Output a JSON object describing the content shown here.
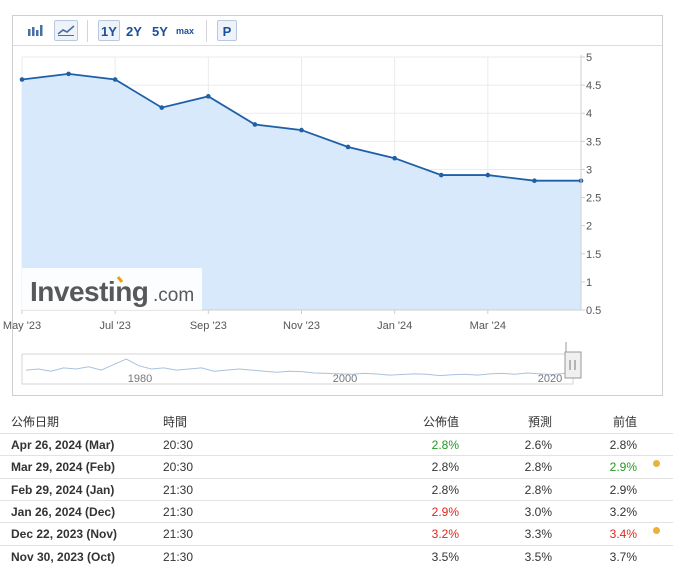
{
  "toolbar": {
    "bar_icon": "bar-chart-icon",
    "line_icon": "line-chart-icon",
    "r1y": "1Y",
    "r2y": "2Y",
    "r5y": "5Y",
    "rmax": "max",
    "p": "P"
  },
  "colors": {
    "line": "#1f5fa8",
    "area": "#d7e9fb",
    "green": "#1f9a1f",
    "red": "#e0261f",
    "dot": "#e9b23a"
  },
  "chart_data": {
    "type": "area",
    "x": [
      "2023-05",
      "2023-06",
      "2023-07",
      "2023-08",
      "2023-09",
      "2023-10",
      "2023-11",
      "2023-12",
      "2024-01",
      "2024-02",
      "2024-03",
      "2024-04",
      "2024-05"
    ],
    "values": [
      4.6,
      4.7,
      4.6,
      4.1,
      4.3,
      3.8,
      3.7,
      3.4,
      3.2,
      2.9,
      2.9,
      2.8,
      2.8
    ],
    "x_tick_labels": [
      "May '23",
      "Jul '23",
      "Sep '23",
      "Nov '23",
      "Jan '24",
      "Mar '24"
    ],
    "y_tick_labels": [
      "5",
      "4.5",
      "4",
      "3.5",
      "3",
      "2.5",
      "2",
      "1.5",
      "1",
      "0.5"
    ],
    "ylim": [
      0.5,
      5
    ],
    "grid": true,
    "navigator_labels": [
      "1980",
      "2000",
      "2020"
    ],
    "watermark": {
      "brand": "Investing",
      "suffix": ".com"
    }
  },
  "table": {
    "headers": {
      "date": "公佈日期",
      "time": "時間",
      "actual": "公佈值",
      "forecast": "預測",
      "previous": "前值"
    },
    "rows": [
      {
        "date": "Apr 26, 2024 (Mar)",
        "time": "20:30",
        "actual": "2.8%",
        "actual_color": "green",
        "forecast": "2.6%",
        "previous": "2.8%",
        "previous_color": "",
        "dot": false
      },
      {
        "date": "Mar 29, 2024 (Feb)",
        "time": "20:30",
        "actual": "2.8%",
        "actual_color": "",
        "forecast": "2.8%",
        "previous": "2.9%",
        "previous_color": "green",
        "dot": true
      },
      {
        "date": "Feb 29, 2024 (Jan)",
        "time": "21:30",
        "actual": "2.8%",
        "actual_color": "",
        "forecast": "2.8%",
        "previous": "2.9%",
        "previous_color": "",
        "dot": false
      },
      {
        "date": "Jan 26, 2024 (Dec)",
        "time": "21:30",
        "actual": "2.9%",
        "actual_color": "red",
        "forecast": "3.0%",
        "previous": "3.2%",
        "previous_color": "",
        "dot": false
      },
      {
        "date": "Dec 22, 2023 (Nov)",
        "time": "21:30",
        "actual": "3.2%",
        "actual_color": "red",
        "forecast": "3.3%",
        "previous": "3.4%",
        "previous_color": "red",
        "dot": true
      },
      {
        "date": "Nov 30, 2023 (Oct)",
        "time": "21:30",
        "actual": "3.5%",
        "actual_color": "",
        "forecast": "3.5%",
        "previous": "3.7%",
        "previous_color": "",
        "dot": false
      }
    ]
  }
}
